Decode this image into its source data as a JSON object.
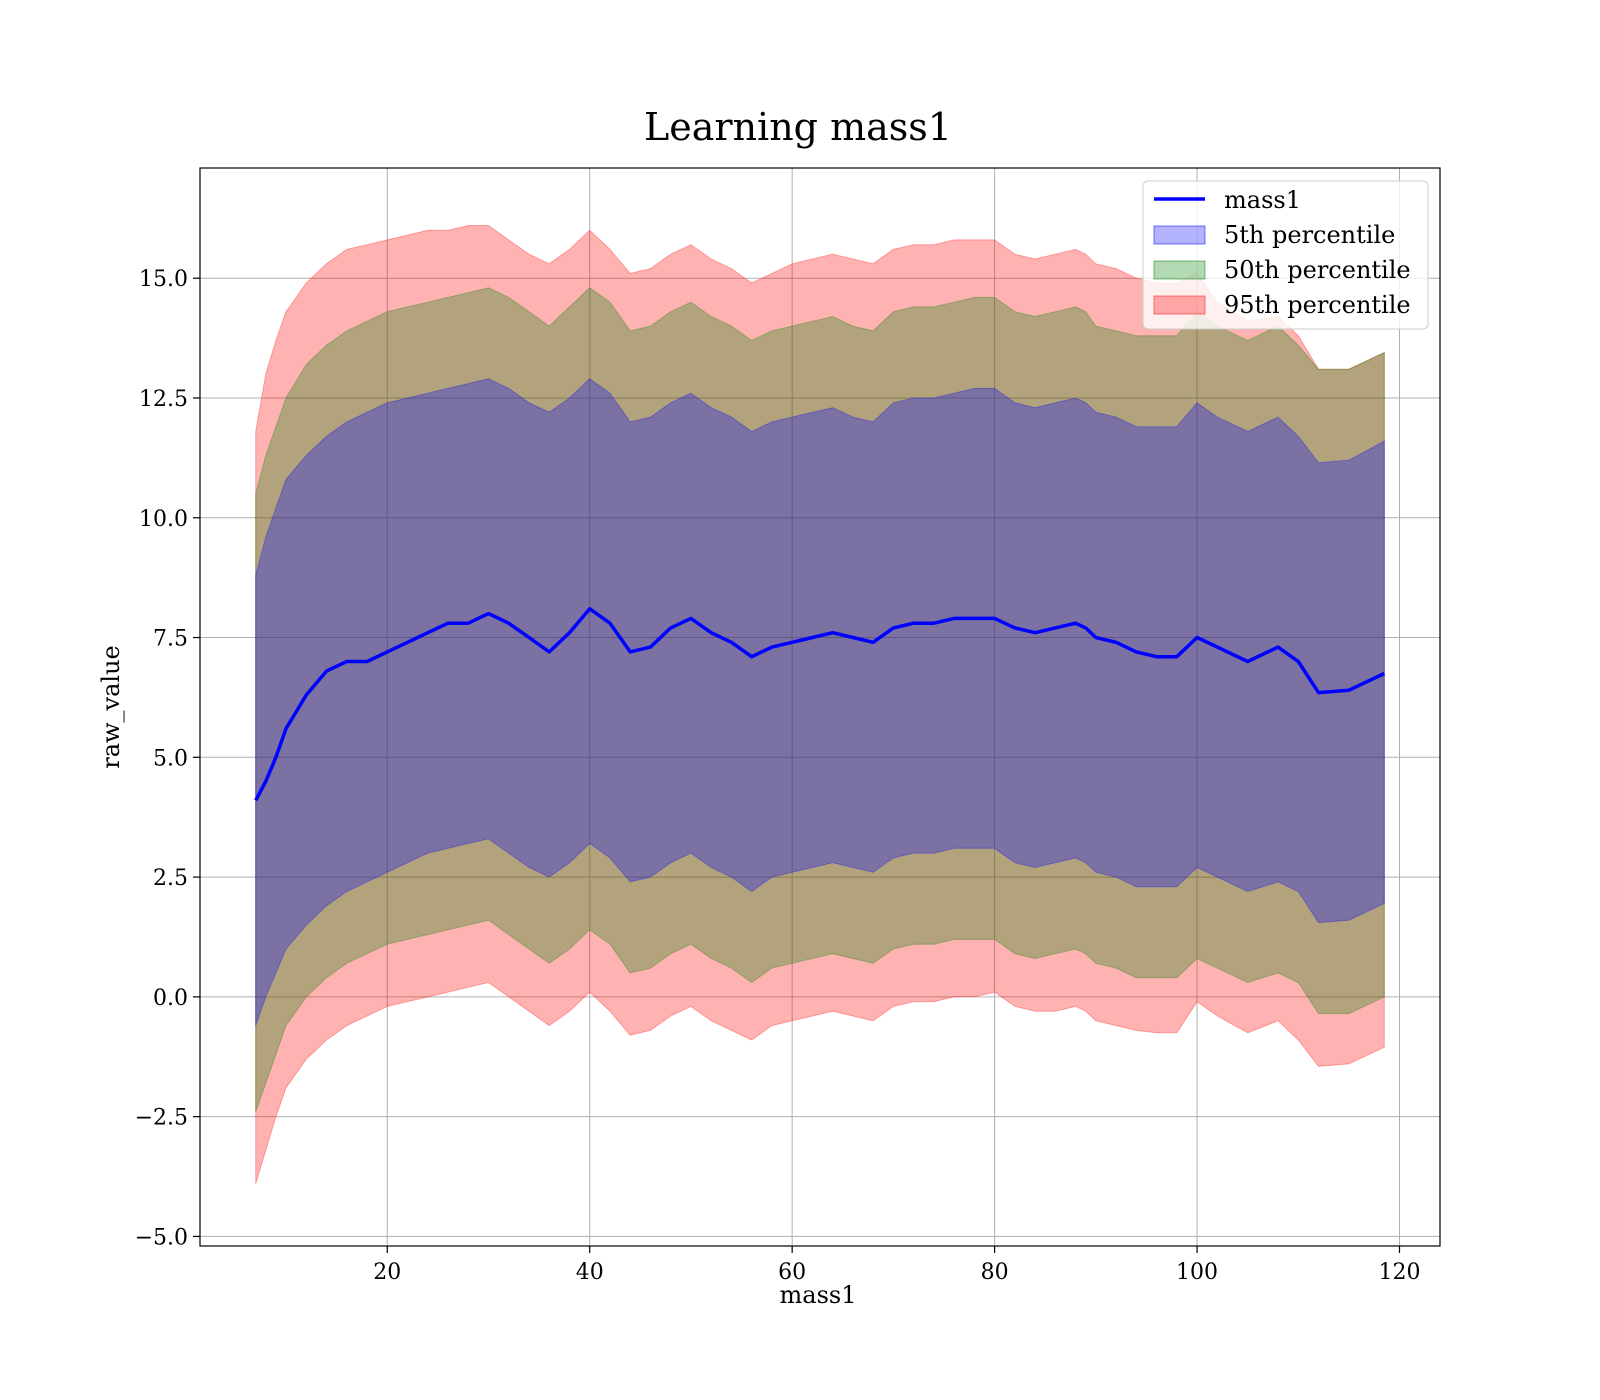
{
  "chart_data": {
    "type": "area",
    "title": "Learning mass1",
    "xlabel": "mass1",
    "ylabel": "raw_value",
    "xlim": [
      1.5,
      124.0
    ],
    "ylim": [
      -5.2,
      17.3
    ],
    "xticks": [
      20,
      40,
      60,
      80,
      100,
      120
    ],
    "yticks": [
      -5.0,
      -2.5,
      0.0,
      2.5,
      5.0,
      7.5,
      10.0,
      12.5,
      15.0
    ],
    "xtick_labels": [
      "20",
      "40",
      "60",
      "80",
      "100",
      "120"
    ],
    "ytick_labels": [
      "−5.0",
      "−2.5",
      "0.0",
      "2.5",
      "5.0",
      "7.5",
      "10.0",
      "12.5",
      "15.0"
    ],
    "grid": true,
    "legend_position": "top-right",
    "legend": [
      "mass1",
      "5th percentile",
      "50th percentile",
      "95th percentile"
    ],
    "colors": {
      "line": "#0000ff",
      "band_5th": "#0000ff",
      "band_50th": "#008000",
      "band_95th": "#ff0000"
    },
    "x": [
      7,
      8,
      9,
      10,
      12,
      14,
      16,
      18,
      20,
      22,
      24,
      26,
      28,
      30,
      32,
      34,
      36,
      38,
      40,
      42,
      44,
      46,
      48,
      50,
      52,
      54,
      56,
      58,
      60,
      62,
      64,
      66,
      68,
      70,
      72,
      74,
      76,
      78,
      80,
      82,
      84,
      86,
      88,
      89,
      90,
      92,
      94,
      96,
      98,
      100,
      102,
      105,
      108,
      110,
      112,
      115,
      118.5
    ],
    "series": [
      {
        "name": "mass1",
        "kind": "line",
        "values": [
          4.1,
          4.5,
          5.0,
          5.6,
          6.3,
          6.8,
          7.0,
          7.0,
          7.2,
          7.4,
          7.6,
          7.8,
          7.8,
          8.0,
          7.8,
          7.5,
          7.2,
          7.6,
          8.1,
          7.8,
          7.2,
          7.3,
          7.7,
          7.9,
          7.6,
          7.4,
          7.1,
          7.3,
          7.4,
          7.5,
          7.6,
          7.5,
          7.4,
          7.7,
          7.8,
          7.8,
          7.9,
          7.9,
          7.9,
          7.7,
          7.6,
          7.7,
          7.8,
          7.7,
          7.5,
          7.4,
          7.2,
          7.1,
          7.1,
          7.5,
          7.3,
          7.0,
          7.3,
          7.0,
          6.35,
          6.4,
          6.75
        ]
      },
      {
        "name": "5th percentile",
        "kind": "band",
        "upper": [
          8.8,
          9.6,
          10.2,
          10.8,
          11.3,
          11.7,
          12.0,
          12.2,
          12.4,
          12.5,
          12.6,
          12.7,
          12.8,
          12.9,
          12.7,
          12.4,
          12.2,
          12.5,
          12.9,
          12.6,
          12.0,
          12.1,
          12.4,
          12.6,
          12.3,
          12.1,
          11.8,
          12.0,
          12.1,
          12.2,
          12.3,
          12.1,
          12.0,
          12.4,
          12.5,
          12.5,
          12.6,
          12.7,
          12.7,
          12.4,
          12.3,
          12.4,
          12.5,
          12.4,
          12.2,
          12.1,
          11.9,
          11.9,
          11.9,
          12.4,
          12.1,
          11.8,
          12.1,
          11.7,
          11.15,
          11.2,
          11.6
        ],
        "lower": [
          -0.6,
          0.0,
          0.5,
          1.0,
          1.5,
          1.9,
          2.2,
          2.4,
          2.6,
          2.8,
          3.0,
          3.1,
          3.2,
          3.3,
          3.0,
          2.7,
          2.5,
          2.8,
          3.2,
          2.9,
          2.4,
          2.5,
          2.8,
          3.0,
          2.7,
          2.5,
          2.2,
          2.5,
          2.6,
          2.7,
          2.8,
          2.7,
          2.6,
          2.9,
          3.0,
          3.0,
          3.1,
          3.1,
          3.1,
          2.8,
          2.7,
          2.8,
          2.9,
          2.8,
          2.6,
          2.5,
          2.3,
          2.3,
          2.3,
          2.7,
          2.5,
          2.2,
          2.4,
          2.2,
          1.55,
          1.6,
          1.95
        ]
      },
      {
        "name": "50th percentile",
        "kind": "band",
        "upper": [
          10.5,
          11.3,
          11.9,
          12.5,
          13.2,
          13.6,
          13.9,
          14.1,
          14.3,
          14.4,
          14.5,
          14.6,
          14.7,
          14.8,
          14.6,
          14.3,
          14.0,
          14.4,
          14.8,
          14.5,
          13.9,
          14.0,
          14.3,
          14.5,
          14.2,
          14.0,
          13.7,
          13.9,
          14.0,
          14.1,
          14.2,
          14.0,
          13.9,
          14.3,
          14.4,
          14.4,
          14.5,
          14.6,
          14.6,
          14.3,
          14.2,
          14.3,
          14.4,
          14.3,
          14.0,
          13.9,
          13.8,
          13.8,
          13.8,
          14.3,
          14.0,
          13.7,
          14.0,
          13.6,
          13.1,
          13.1,
          13.45
        ],
        "lower": [
          -2.4,
          -1.8,
          -1.2,
          -0.6,
          0.0,
          0.4,
          0.7,
          0.9,
          1.1,
          1.2,
          1.3,
          1.4,
          1.5,
          1.6,
          1.3,
          1.0,
          0.7,
          1.0,
          1.4,
          1.1,
          0.5,
          0.6,
          0.9,
          1.1,
          0.8,
          0.6,
          0.3,
          0.6,
          0.7,
          0.8,
          0.9,
          0.8,
          0.7,
          1.0,
          1.1,
          1.1,
          1.2,
          1.2,
          1.2,
          0.9,
          0.8,
          0.9,
          1.0,
          0.9,
          0.7,
          0.6,
          0.4,
          0.4,
          0.4,
          0.8,
          0.6,
          0.3,
          0.5,
          0.3,
          -0.35,
          -0.35,
          0.0
        ]
      },
      {
        "name": "95th percentile",
        "kind": "band",
        "upper": [
          11.8,
          13.0,
          13.7,
          14.3,
          14.9,
          15.3,
          15.6,
          15.7,
          15.8,
          15.9,
          16.0,
          16.0,
          16.1,
          16.1,
          15.8,
          15.5,
          15.3,
          15.6,
          16.0,
          15.6,
          15.1,
          15.2,
          15.5,
          15.7,
          15.4,
          15.2,
          14.9,
          15.1,
          15.3,
          15.4,
          15.5,
          15.4,
          15.3,
          15.6,
          15.7,
          15.7,
          15.8,
          15.8,
          15.8,
          15.5,
          15.4,
          15.5,
          15.6,
          15.5,
          15.3,
          15.2,
          15.0,
          14.9,
          14.9,
          15.1,
          14.5,
          14.1,
          14.2,
          13.8,
          13.1,
          13.1,
          13.45
        ],
        "lower": [
          -3.9,
          -3.2,
          -2.5,
          -1.9,
          -1.3,
          -0.9,
          -0.6,
          -0.4,
          -0.2,
          -0.1,
          0.0,
          0.1,
          0.2,
          0.3,
          0.0,
          -0.3,
          -0.6,
          -0.3,
          0.1,
          -0.3,
          -0.8,
          -0.7,
          -0.4,
          -0.2,
          -0.5,
          -0.7,
          -0.9,
          -0.6,
          -0.5,
          -0.4,
          -0.3,
          -0.4,
          -0.5,
          -0.2,
          -0.1,
          -0.1,
          0.0,
          0.0,
          0.1,
          -0.2,
          -0.3,
          -0.3,
          -0.2,
          -0.3,
          -0.5,
          -0.6,
          -0.7,
          -0.75,
          -0.75,
          -0.1,
          -0.4,
          -0.75,
          -0.5,
          -0.9,
          -1.45,
          -1.4,
          -1.05
        ]
      }
    ]
  }
}
